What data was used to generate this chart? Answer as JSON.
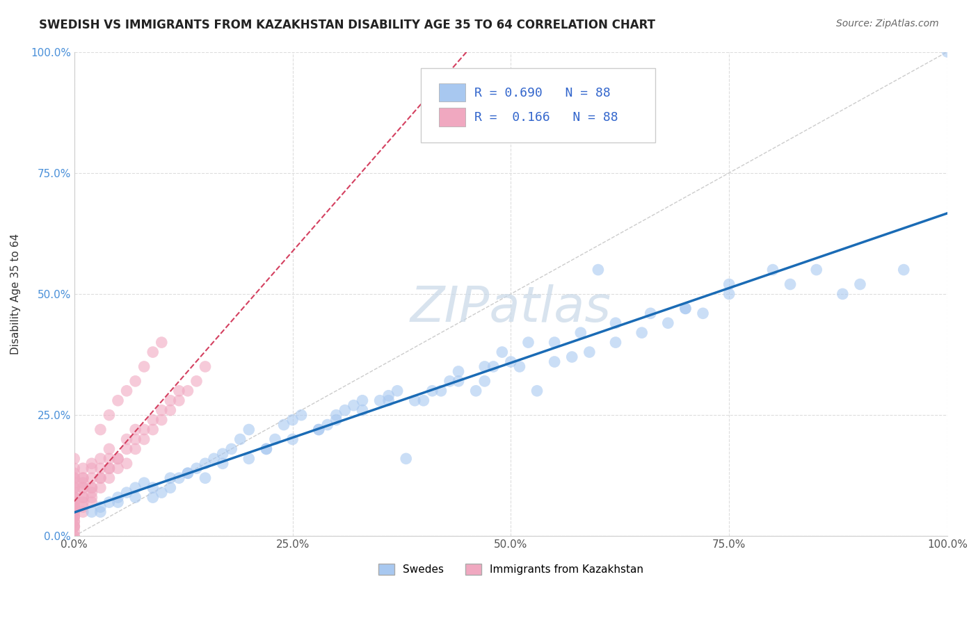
{
  "title": "SWEDISH VS IMMIGRANTS FROM KAZAKHSTAN DISABILITY AGE 35 TO 64 CORRELATION CHART",
  "source": "Source: ZipAtlas.com",
  "xlabel": "",
  "ylabel": "Disability Age 35 to 64",
  "xlim": [
    0,
    1.0
  ],
  "ylim": [
    0,
    1.0
  ],
  "xtick_labels": [
    "0.0%",
    "100.0%"
  ],
  "ytick_labels": [
    "0.0%",
    "25.0%",
    "50.0%",
    "75.0%",
    "100.0%"
  ],
  "ytick_positions": [
    0.0,
    0.25,
    0.5,
    0.75,
    1.0
  ],
  "xtick_positions": [
    0.0,
    1.0
  ],
  "r_swedes": 0.69,
  "r_kazakh": 0.166,
  "n_swedes": 88,
  "n_kazakh": 88,
  "swede_color": "#a8c8f0",
  "kazakh_color": "#f0a8c0",
  "swede_line_color": "#1a6bb5",
  "kazakh_line_color": "#d44060",
  "diagonal_color": "#cccccc",
  "grid_color": "#dddddd",
  "legend_box_color": "#f5f5f5",
  "swedes_x": [
    0.02,
    0.03,
    0.04,
    0.05,
    0.06,
    0.07,
    0.08,
    0.09,
    0.1,
    0.11,
    0.12,
    0.13,
    0.14,
    0.15,
    0.16,
    0.17,
    0.18,
    0.19,
    0.2,
    0.22,
    0.23,
    0.24,
    0.25,
    0.26,
    0.28,
    0.29,
    0.3,
    0.31,
    0.32,
    0.33,
    0.35,
    0.36,
    0.37,
    0.38,
    0.4,
    0.41,
    0.43,
    0.44,
    0.46,
    0.47,
    0.48,
    0.5,
    0.51,
    0.53,
    0.55,
    0.57,
    0.59,
    0.6,
    0.62,
    0.65,
    0.68,
    0.7,
    0.72,
    0.75,
    0.8,
    0.85,
    0.88,
    0.9,
    0.95,
    1.0,
    0.03,
    0.05,
    0.07,
    0.09,
    0.11,
    0.13,
    0.15,
    0.17,
    0.2,
    0.22,
    0.25,
    0.28,
    0.3,
    0.33,
    0.36,
    0.39,
    0.42,
    0.44,
    0.47,
    0.49,
    0.52,
    0.55,
    0.58,
    0.62,
    0.66,
    0.7,
    0.75,
    0.82
  ],
  "swedes_y": [
    0.05,
    0.06,
    0.07,
    0.08,
    0.09,
    0.1,
    0.11,
    0.08,
    0.09,
    0.1,
    0.12,
    0.13,
    0.14,
    0.15,
    0.16,
    0.17,
    0.18,
    0.2,
    0.22,
    0.18,
    0.2,
    0.23,
    0.24,
    0.25,
    0.22,
    0.23,
    0.25,
    0.26,
    0.27,
    0.28,
    0.28,
    0.29,
    0.3,
    0.16,
    0.28,
    0.3,
    0.32,
    0.34,
    0.3,
    0.32,
    0.35,
    0.36,
    0.35,
    0.3,
    0.36,
    0.37,
    0.38,
    0.55,
    0.4,
    0.42,
    0.44,
    0.47,
    0.46,
    0.52,
    0.55,
    0.55,
    0.5,
    0.52,
    0.55,
    1.0,
    0.05,
    0.07,
    0.08,
    0.1,
    0.12,
    0.13,
    0.12,
    0.15,
    0.16,
    0.18,
    0.2,
    0.22,
    0.24,
    0.26,
    0.28,
    0.28,
    0.3,
    0.32,
    0.35,
    0.38,
    0.4,
    0.4,
    0.42,
    0.44,
    0.46,
    0.47,
    0.5,
    0.52
  ],
  "kazakh_x": [
    0.0,
    0.0,
    0.0,
    0.0,
    0.0,
    0.0,
    0.0,
    0.0,
    0.0,
    0.0,
    0.0,
    0.0,
    0.0,
    0.0,
    0.0,
    0.0,
    0.0,
    0.0,
    0.0,
    0.0,
    0.01,
    0.01,
    0.01,
    0.01,
    0.01,
    0.01,
    0.01,
    0.01,
    0.02,
    0.02,
    0.02,
    0.02,
    0.02,
    0.02,
    0.03,
    0.03,
    0.03,
    0.03,
    0.04,
    0.04,
    0.04,
    0.04,
    0.05,
    0.05,
    0.05,
    0.06,
    0.06,
    0.07,
    0.07,
    0.08,
    0.08,
    0.09,
    0.09,
    0.1,
    0.1,
    0.11,
    0.12,
    0.13,
    0.14,
    0.15,
    0.0,
    0.0,
    0.0,
    0.0,
    0.0,
    0.0,
    0.0,
    0.0,
    0.0,
    0.01,
    0.01,
    0.01,
    0.02,
    0.02,
    0.03,
    0.03,
    0.04,
    0.04,
    0.05,
    0.06,
    0.06,
    0.07,
    0.07,
    0.08,
    0.09,
    0.1,
    0.11,
    0.12
  ],
  "kazakh_y": [
    0.0,
    0.01,
    0.02,
    0.03,
    0.04,
    0.05,
    0.06,
    0.07,
    0.08,
    0.09,
    0.1,
    0.11,
    0.12,
    0.13,
    0.02,
    0.03,
    0.04,
    0.05,
    0.06,
    0.07,
    0.05,
    0.06,
    0.07,
    0.08,
    0.1,
    0.11,
    0.12,
    0.14,
    0.07,
    0.08,
    0.09,
    0.1,
    0.12,
    0.15,
    0.1,
    0.12,
    0.14,
    0.22,
    0.12,
    0.14,
    0.16,
    0.25,
    0.14,
    0.16,
    0.28,
    0.15,
    0.3,
    0.18,
    0.32,
    0.2,
    0.35,
    0.22,
    0.38,
    0.24,
    0.4,
    0.26,
    0.28,
    0.3,
    0.32,
    0.35,
    0.0,
    0.02,
    0.04,
    0.06,
    0.08,
    0.1,
    0.12,
    0.14,
    0.16,
    0.08,
    0.1,
    0.12,
    0.1,
    0.14,
    0.12,
    0.16,
    0.14,
    0.18,
    0.16,
    0.18,
    0.2,
    0.2,
    0.22,
    0.22,
    0.24,
    0.26,
    0.28,
    0.3
  ],
  "watermark": "ZIPatlas",
  "watermark_color": "#c8d8e8",
  "marker_size": 12,
  "alpha": 0.6
}
